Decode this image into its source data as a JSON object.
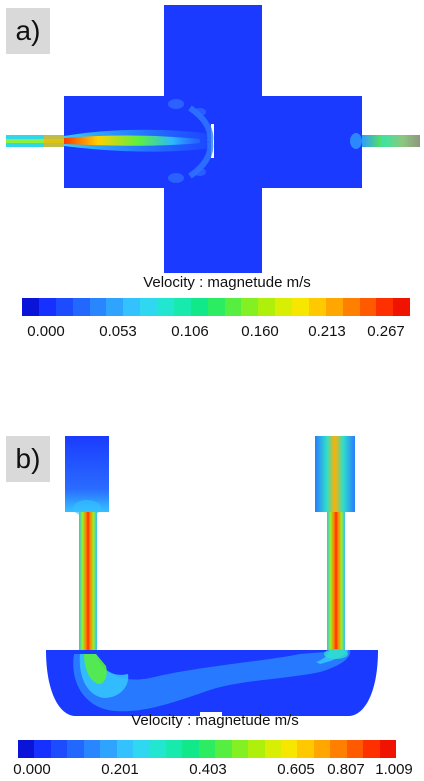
{
  "panels": [
    {
      "label": "a)",
      "colorbar_title": "Velocity : magnetude m/s",
      "ticks": [
        "0.000",
        "0.053",
        "0.106",
        "0.160",
        "0.213",
        "0.267"
      ]
    },
    {
      "label": "b)",
      "colorbar_title": "Velocity : magnetude m/s",
      "ticks": [
        "0.000",
        "0.201",
        "0.403",
        "0.605",
        "0.807",
        "1.009"
      ]
    }
  ],
  "colors": {
    "background_flow": "#1a3bff",
    "colormap": [
      "#0a14d8",
      "#1530ff",
      "#1d4cff",
      "#2268ff",
      "#2a86ff",
      "#2fa4ff",
      "#34c2ff",
      "#2fd8f0",
      "#22e6d0",
      "#18eaae",
      "#10e88a",
      "#2cec62",
      "#56ee40",
      "#82f022",
      "#aef00c",
      "#d8ee04",
      "#f6e600",
      "#ffc800",
      "#ffa600",
      "#ff8000",
      "#ff5a00",
      "#ff3000",
      "#f01400"
    ]
  }
}
